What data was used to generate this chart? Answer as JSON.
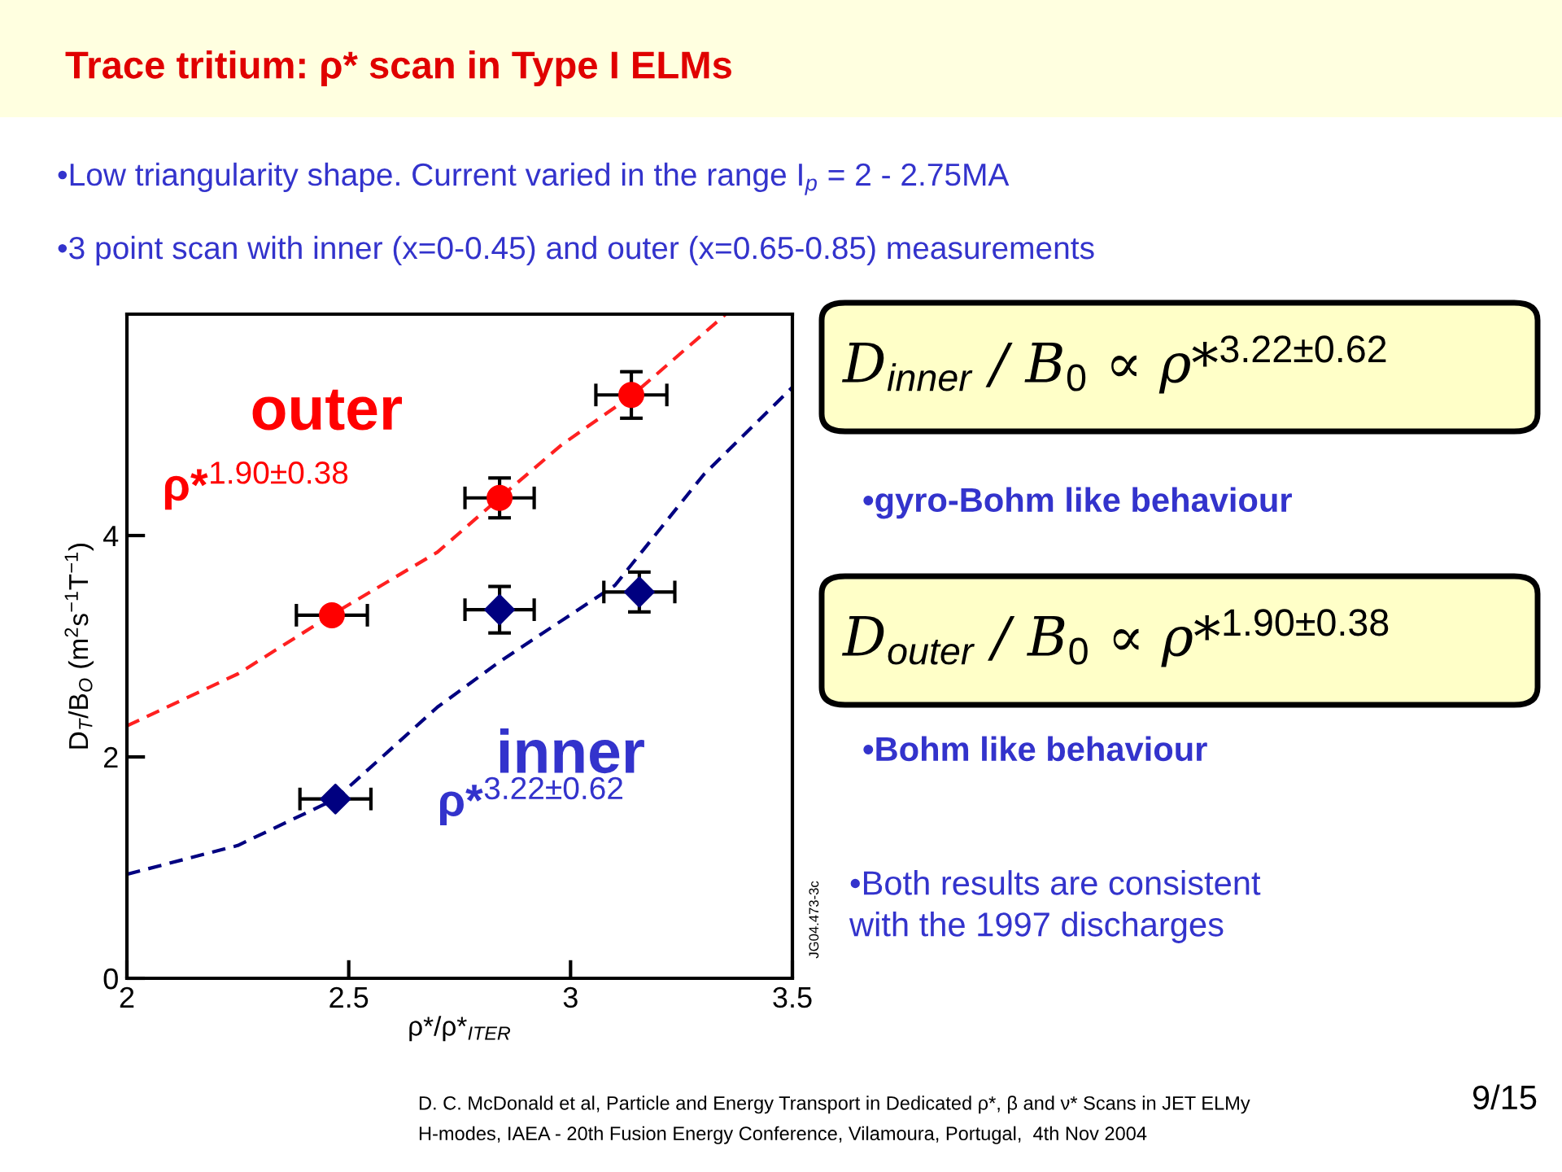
{
  "chart_data": {
    "type": "scatter",
    "title": "Trace tritium: ρ* scan in Type I ELMs",
    "xlabel": "ρ*/ρ*$_{ITER}$",
    "ylabel": "D$_{T}$/B$_{O}$ (m$^{2}$s$^{−1}$T$^{−1}$)",
    "xlim": [
      2,
      3.5
    ],
    "ylim": [
      0,
      6
    ],
    "xticks": [
      2,
      2.5,
      3,
      3.5
    ],
    "yticks": [
      0,
      2,
      4
    ],
    "grid": false,
    "legend": false,
    "series": [
      {
        "name": "outer",
        "type": "scatter",
        "marker": "circle",
        "color": "#ff0000",
        "x": [
          2.462,
          2.84,
          3.137
        ],
        "values": [
          3.28,
          4.34,
          5.27
        ],
        "errors": [
          null,
          0.18,
          0.21
        ],
        "xerrors": [
          0.08,
          0.078,
          0.08
        ]
      },
      {
        "name": "inner",
        "type": "scatter",
        "marker": "diamond",
        "color": "#000080",
        "x": [
          2.47,
          2.84,
          3.155
        ],
        "values": [
          1.62,
          3.33,
          3.49
        ],
        "errors": [
          null,
          0.21,
          0.18
        ],
        "xerrors": [
          0.08,
          0.078,
          0.08
        ]
      },
      {
        "type": "line",
        "line_style": "dashed",
        "marker": "none",
        "color": "#ff2020",
        "x": [
          2,
          2.25,
          2.46,
          2.7,
          2.84,
          2.98,
          3.14,
          3.35
        ],
        "values": [
          2.28,
          2.75,
          3.28,
          3.85,
          4.34,
          4.82,
          5.27,
          6.0
        ]
      },
      {
        "type": "line",
        "line_style": "dashed",
        "marker": "none",
        "color": "#000080",
        "x": [
          2,
          2.25,
          2.47,
          2.7,
          2.84,
          3.1,
          3.3,
          3.5
        ],
        "values": [
          0.94,
          1.2,
          1.62,
          2.45,
          2.86,
          3.55,
          4.55,
          5.34
        ]
      }
    ],
    "annotations": [
      "ρ*$^{1.90±0.38}$",
      "ρ*$^{3.22±0.62}$",
      "D$_{inner}$ / B$_{0}$ ∝ ρ*$^{3.22±0.62}$",
      "•gyro-Bohm like behaviour",
      "D$_{outer}$ / B$_{0}$ ∝ ρ*$^{1.90±0.38}$",
      "•Bohm like behaviour",
      "•Both results are consistent\nwith the 1997 discharges",
      "•Low triangularity shape. Current varied in the range I$_{p}$ = 2 - 2.75MA",
      "•3 point scan with inner (x=0-0.45) and outer (x=0.65-0.85) measurements",
      "JG04.473-3c",
      "D. C. McDonald et al, Particle and Energy Transport in Dedicated ρ*, β and ν* Scans in JET ELMy\nH-modes, IAEA - 20th Fusion Energy Conference, Vilamoura, Portugal,  4th Nov 2004",
      "9/15"
    ]
  }
}
